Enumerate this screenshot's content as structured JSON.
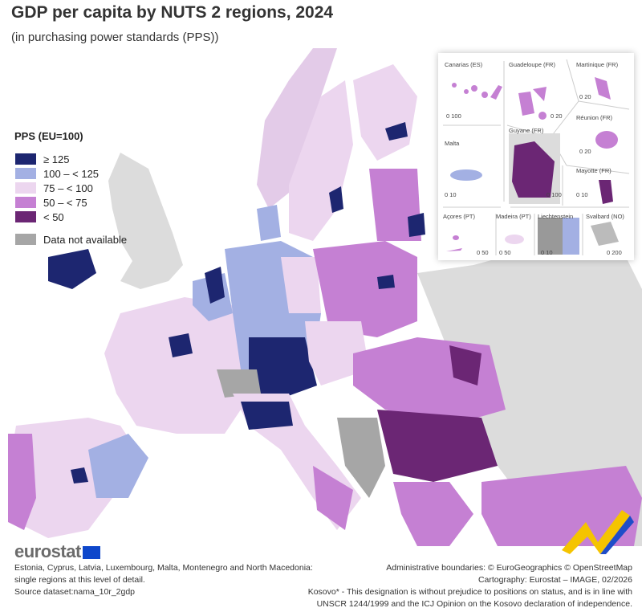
{
  "title": "GDP per capita by NUTS 2 regions, 2024",
  "subtitle": "(in purchasing power standards (PPS))",
  "legend": {
    "title": "PPS (EU=100)",
    "items": [
      {
        "label": "≥ 125",
        "color": "#1d2670"
      },
      {
        "label": "100 – < 125",
        "color": "#a3b0e3"
      },
      {
        "label": "75 – < 100",
        "color": "#ecd6ef"
      },
      {
        "label": "50 – < 75",
        "color": "#c580d3"
      },
      {
        "label": "< 50",
        "color": "#6b2674"
      }
    ],
    "na_label": "Data not available",
    "na_color": "#a6a6a6"
  },
  "insets": [
    {
      "name": "Canarias (ES)",
      "scale": "0 100"
    },
    {
      "name": "Guadeloupe (FR)",
      "scale": "0 20"
    },
    {
      "name": "Martinique (FR)",
      "scale": "0 20"
    },
    {
      "name": "Réunion (FR)",
      "scale": "0 20"
    },
    {
      "name": "Malta",
      "scale": "0 10"
    },
    {
      "name": "Guyane (FR)",
      "scale": "0 100"
    },
    {
      "name": "Mayotte (FR)",
      "scale": "0 10"
    },
    {
      "name": "Açores (PT)",
      "scale": "0 50"
    },
    {
      "name": "Madeira (PT)",
      "scale": "0 50"
    },
    {
      "name": "Liechtenstein",
      "scale": "0 10"
    },
    {
      "name": "Svalbard (NO)",
      "scale": "0 200"
    }
  ],
  "logo": "eurostat",
  "footer_left": [
    "Estonia, Cyprus, Latvia, Luxembourg, Malta, Montenegro and North Macedonia:",
    "single regions at this level of detail.",
    "Source dataset:nama_10r_2gdp"
  ],
  "footer_right": [
    "Administrative boundaries: © EuroGeographics © OpenStreetMap",
    "Cartography: Eurostat – IMAGE, 02/2026",
    "Kosovo* - This designation is without prejudice to positions on status, and is in line with",
    "UNSCR 1244/1999 and the ICJ Opinion on the Kosovo declaration of independence."
  ]
}
